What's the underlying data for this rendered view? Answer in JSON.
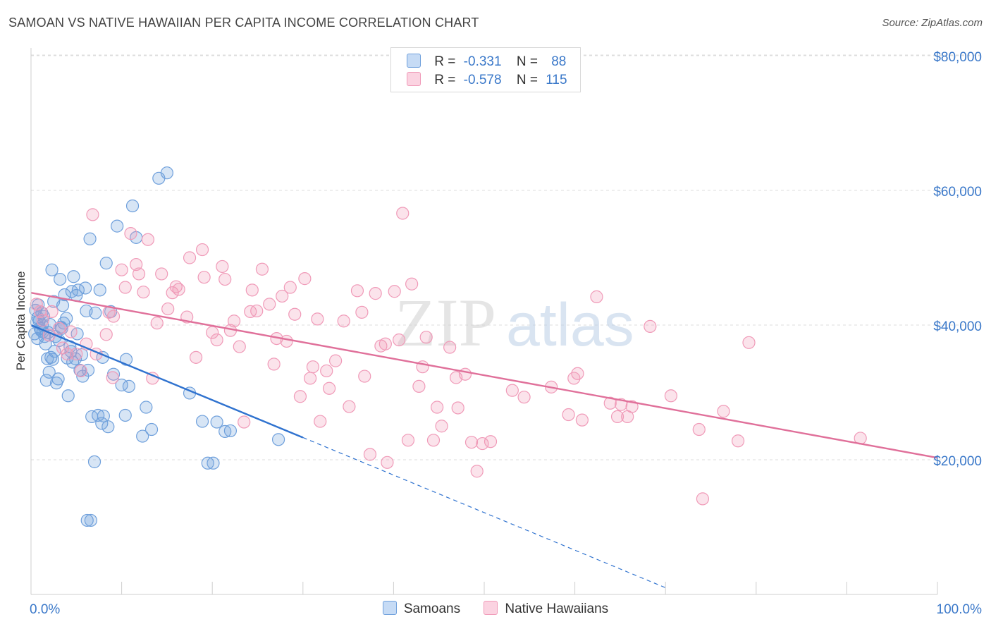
{
  "title": "SAMOAN VS NATIVE HAWAIIAN PER CAPITA INCOME CORRELATION CHART",
  "source": "Source: ZipAtlas.com",
  "watermark": {
    "part1": "ZIP",
    "part2": "atlas"
  },
  "legend_top": [
    {
      "r_label": "R =",
      "r_value": "-0.331",
      "n_label": "N =",
      "n_value": "88",
      "color": "#6fa0dc"
    },
    {
      "r_label": "R =",
      "r_value": "-0.578",
      "n_label": "N =",
      "n_value": "115",
      "color": "#f09ab8"
    }
  ],
  "colors": {
    "samoans": "#6fa0dc",
    "hawaiians": "#f09ab8",
    "samoans_line": "#2f72cf",
    "hawaiians_line": "#e0709a",
    "axis_label": "#3a78c9"
  },
  "chart_data": {
    "type": "scatter",
    "title": "SAMOAN VS NATIVE HAWAIIAN PER CAPITA INCOME CORRELATION CHART",
    "xlabel": "",
    "ylabel": "Per Capita Income",
    "xlim": [
      0,
      100
    ],
    "ylim": [
      0,
      84000
    ],
    "x_tick_labels": [
      "0.0%",
      "100.0%"
    ],
    "y_ticks": [
      20000,
      40000,
      60000,
      80000
    ],
    "y_tick_labels": [
      "$20,000",
      "$40,000",
      "$60,000",
      "$80,000"
    ],
    "grid": true,
    "legend_position": "top-center",
    "series": [
      {
        "name": "Samoans",
        "r": -0.331,
        "n": 88,
        "trend": {
          "x0": 0,
          "y0": 40000,
          "x1": 30,
          "y1": 23300,
          "dashed_to_x": 70,
          "dashed_to_y": 1000
        },
        "points": [
          [
            0.5,
            42200
          ],
          [
            0.6,
            40400
          ],
          [
            0.7,
            38000
          ],
          [
            0.8,
            43000
          ],
          [
            1.0,
            39500
          ],
          [
            1.2,
            41800
          ],
          [
            1.3,
            39000
          ],
          [
            1.5,
            38300
          ],
          [
            1.6,
            37200
          ],
          [
            1.7,
            31800
          ],
          [
            1.8,
            35000
          ],
          [
            2.0,
            33000
          ],
          [
            2.2,
            35200
          ],
          [
            2.3,
            48200
          ],
          [
            2.5,
            43500
          ],
          [
            2.7,
            38300
          ],
          [
            2.8,
            31400
          ],
          [
            3.0,
            32000
          ],
          [
            3.2,
            46800
          ],
          [
            3.4,
            39500
          ],
          [
            3.5,
            42900
          ],
          [
            3.7,
            44500
          ],
          [
            3.9,
            41000
          ],
          [
            4.1,
            29500
          ],
          [
            4.3,
            36800
          ],
          [
            4.5,
            45000
          ],
          [
            4.6,
            34500
          ],
          [
            4.7,
            47200
          ],
          [
            4.9,
            35000
          ],
          [
            5.0,
            44400
          ],
          [
            5.2,
            45200
          ],
          [
            5.4,
            33300
          ],
          [
            5.6,
            35600
          ],
          [
            5.7,
            32400
          ],
          [
            6.0,
            45500
          ],
          [
            6.1,
            42100
          ],
          [
            6.3,
            33300
          ],
          [
            6.5,
            52800
          ],
          [
            6.7,
            26400
          ],
          [
            7.0,
            19700
          ],
          [
            7.1,
            41800
          ],
          [
            7.4,
            26600
          ],
          [
            7.6,
            45200
          ],
          [
            7.8,
            25400
          ],
          [
            7.9,
            35200
          ],
          [
            8.0,
            26500
          ],
          [
            8.3,
            49200
          ],
          [
            8.5,
            24900
          ],
          [
            8.8,
            42000
          ],
          [
            9.1,
            32700
          ],
          [
            9.5,
            54700
          ],
          [
            10.0,
            31100
          ],
          [
            10.4,
            26600
          ],
          [
            10.5,
            34900
          ],
          [
            10.8,
            30900
          ],
          [
            11.6,
            53000
          ],
          [
            11.2,
            57700
          ],
          [
            12.3,
            23500
          ],
          [
            12.7,
            27800
          ],
          [
            13.3,
            24500
          ],
          [
            14.1,
            61800
          ],
          [
            15.0,
            62600
          ],
          [
            17.5,
            29900
          ],
          [
            18.9,
            25700
          ],
          [
            19.5,
            19500
          ],
          [
            20.1,
            19500
          ],
          [
            20.5,
            25600
          ],
          [
            21.4,
            24200
          ],
          [
            22.0,
            24300
          ],
          [
            27.3,
            23000
          ],
          [
            6.2,
            11000
          ],
          [
            6.6,
            11000
          ],
          [
            1.1,
            39200
          ],
          [
            2.1,
            40100
          ],
          [
            3.3,
            39700
          ],
          [
            1.9,
            38900
          ],
          [
            0.9,
            40600
          ],
          [
            2.6,
            36100
          ],
          [
            4.0,
            35100
          ],
          [
            5.1,
            38700
          ],
          [
            3.6,
            40300
          ],
          [
            1.4,
            41300
          ],
          [
            0.4,
            38700
          ],
          [
            2.4,
            34900
          ],
          [
            3.1,
            37700
          ],
          [
            4.4,
            36100
          ],
          [
            1.25,
            40000
          ],
          [
            0.75,
            41100
          ]
        ]
      },
      {
        "name": "Native Hawaiians",
        "r": -0.578,
        "n": 115,
        "trend": {
          "x0": 0,
          "y0": 44800,
          "x1": 100,
          "y1": 20300
        },
        "points": [
          [
            0.6,
            43100
          ],
          [
            1.0,
            42000
          ],
          [
            1.3,
            40700
          ],
          [
            2.0,
            38500
          ],
          [
            2.3,
            42000
          ],
          [
            3.1,
            39500
          ],
          [
            3.5,
            36600
          ],
          [
            4.0,
            35700
          ],
          [
            4.4,
            39000
          ],
          [
            5.0,
            35700
          ],
          [
            5.5,
            33200
          ],
          [
            6.1,
            37200
          ],
          [
            6.8,
            56400
          ],
          [
            7.2,
            35700
          ],
          [
            8.3,
            38600
          ],
          [
            8.6,
            41900
          ],
          [
            9.0,
            32200
          ],
          [
            9.1,
            41300
          ],
          [
            10.0,
            48200
          ],
          [
            10.4,
            45600
          ],
          [
            11.0,
            53600
          ],
          [
            11.6,
            49000
          ],
          [
            11.9,
            47600
          ],
          [
            12.4,
            44900
          ],
          [
            12.9,
            52700
          ],
          [
            13.4,
            32100
          ],
          [
            13.9,
            40300
          ],
          [
            14.4,
            47600
          ],
          [
            15.1,
            42400
          ],
          [
            15.6,
            44800
          ],
          [
            16.0,
            45700
          ],
          [
            16.3,
            45300
          ],
          [
            17.2,
            41200
          ],
          [
            17.5,
            50000
          ],
          [
            18.2,
            35200
          ],
          [
            18.9,
            51200
          ],
          [
            19.1,
            47100
          ],
          [
            20.0,
            38900
          ],
          [
            20.5,
            37800
          ],
          [
            21.1,
            48700
          ],
          [
            21.4,
            46800
          ],
          [
            22.0,
            39200
          ],
          [
            22.4,
            40600
          ],
          [
            23.0,
            36800
          ],
          [
            23.5,
            25600
          ],
          [
            24.2,
            42000
          ],
          [
            24.4,
            45200
          ],
          [
            24.9,
            42100
          ],
          [
            25.5,
            48300
          ],
          [
            26.3,
            43100
          ],
          [
            26.8,
            34200
          ],
          [
            27.1,
            38000
          ],
          [
            27.7,
            44300
          ],
          [
            28.2,
            37600
          ],
          [
            28.6,
            45600
          ],
          [
            29.1,
            41600
          ],
          [
            29.7,
            29400
          ],
          [
            30.2,
            46900
          ],
          [
            30.8,
            32100
          ],
          [
            31.1,
            33800
          ],
          [
            31.6,
            40900
          ],
          [
            31.9,
            25700
          ],
          [
            32.6,
            33200
          ],
          [
            32.9,
            30600
          ],
          [
            33.6,
            34700
          ],
          [
            34.5,
            40600
          ],
          [
            35.1,
            27900
          ],
          [
            36.0,
            45100
          ],
          [
            36.5,
            41900
          ],
          [
            36.8,
            32400
          ],
          [
            37.4,
            20800
          ],
          [
            38.0,
            44700
          ],
          [
            38.6,
            36900
          ],
          [
            39.1,
            37200
          ],
          [
            40.1,
            45000
          ],
          [
            40.6,
            37800
          ],
          [
            41.0,
            56600
          ],
          [
            41.6,
            22900
          ],
          [
            42.0,
            46100
          ],
          [
            42.8,
            30900
          ],
          [
            43.2,
            33800
          ],
          [
            43.6,
            38200
          ],
          [
            44.4,
            22900
          ],
          [
            44.8,
            27800
          ],
          [
            45.3,
            25000
          ],
          [
            46.2,
            36700
          ],
          [
            46.9,
            32200
          ],
          [
            47.1,
            27700
          ],
          [
            47.9,
            32700
          ],
          [
            48.6,
            22600
          ],
          [
            49.2,
            18300
          ],
          [
            49.8,
            22400
          ],
          [
            50.7,
            22700
          ],
          [
            53.1,
            30300
          ],
          [
            54.4,
            29300
          ],
          [
            57.4,
            30800
          ],
          [
            59.3,
            26700
          ],
          [
            59.9,
            32100
          ],
          [
            60.3,
            32800
          ],
          [
            60.8,
            25900
          ],
          [
            62.4,
            44200
          ],
          [
            63.9,
            28400
          ],
          [
            64.7,
            26400
          ],
          [
            65.1,
            28200
          ],
          [
            65.8,
            26400
          ],
          [
            66.3,
            27900
          ],
          [
            68.3,
            39800
          ],
          [
            70.6,
            29500
          ],
          [
            73.7,
            24500
          ],
          [
            74.1,
            14200
          ],
          [
            76.4,
            27200
          ],
          [
            78.0,
            22800
          ],
          [
            79.2,
            37400
          ],
          [
            91.5,
            23200
          ],
          [
            39.3,
            19600
          ]
        ]
      }
    ]
  },
  "bottom_legend": [
    {
      "label": "Samoans",
      "color": "#6fa0dc"
    },
    {
      "label": "Native Hawaiians",
      "color": "#f09ab8"
    }
  ]
}
